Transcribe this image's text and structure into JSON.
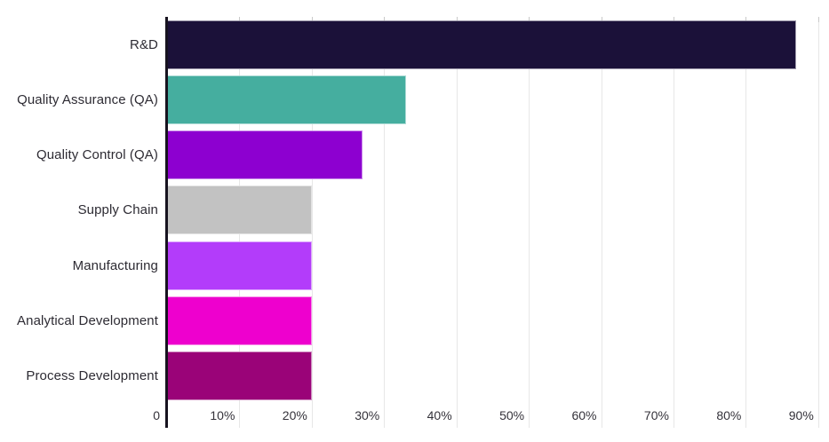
{
  "chart_data": {
    "type": "bar",
    "orientation": "horizontal",
    "title": "",
    "xlabel": "",
    "ylabel": "",
    "legend": "none",
    "grid": "vertical",
    "categories": [
      "R&D",
      "Quality Assurance (QA)",
      "Quality Control (QA)",
      "Supply Chain",
      "Manufacturing",
      "Analytical Development",
      "Process Development"
    ],
    "values": [
      87,
      33,
      27,
      20,
      20,
      20,
      20
    ],
    "unit": "%",
    "bar_colors": [
      "#1b1139",
      "#45ae9f",
      "#8d00d0",
      "#c2c2c2",
      "#b33cfa",
      "#ee00ce",
      "#9a0378"
    ],
    "x_axis": {
      "min": 0,
      "max": 91.5,
      "tick_values": [
        0,
        10,
        20,
        30,
        40,
        50,
        60,
        70,
        80,
        90
      ],
      "tick_labels": [
        "0",
        "10%",
        "20%",
        "30%",
        "40%",
        "50%",
        "60%",
        "70%",
        "80%",
        "90%"
      ]
    },
    "colors": {
      "background": "#ffffff",
      "axis_line": "#17131f",
      "gridline": "#e7e7e7",
      "tick_mark": "#c9c9c9",
      "label_text": "#2d2b33"
    }
  }
}
